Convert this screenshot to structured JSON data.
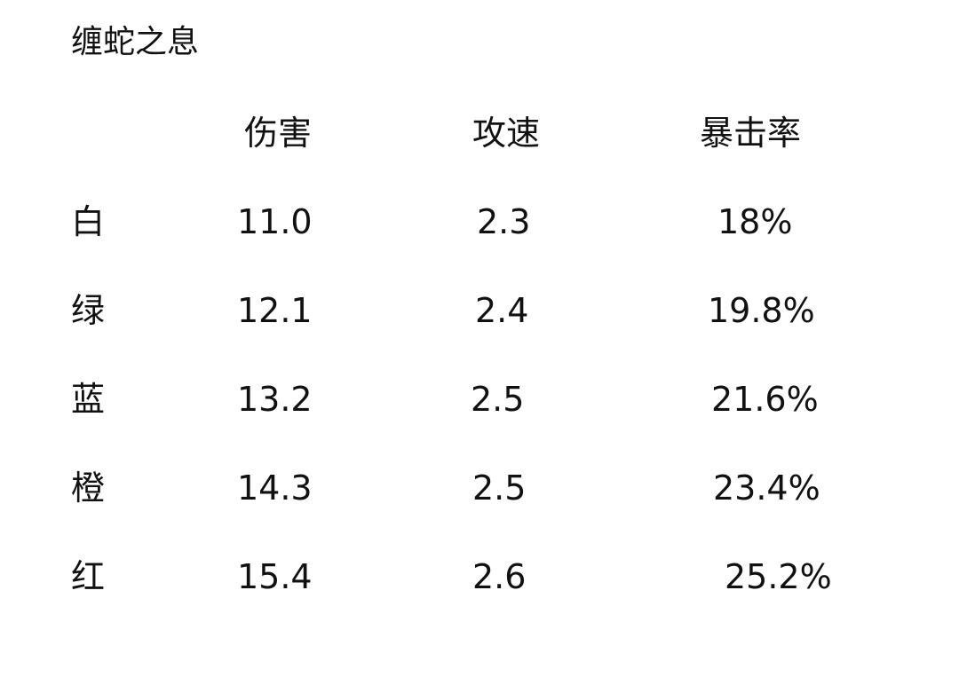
{
  "title": "缠蛇之息",
  "table": {
    "headers": [
      "伤害",
      "攻速",
      "暴击率"
    ],
    "rows": [
      {
        "label": "白",
        "values": [
          "11.0",
          "2.3",
          "18%"
        ]
      },
      {
        "label": "绿",
        "values": [
          "12.1",
          "2.4",
          "19.8%"
        ]
      },
      {
        "label": "蓝",
        "values": [
          "13.2",
          "2.5",
          "21.6%"
        ]
      },
      {
        "label": "橙",
        "values": [
          "14.3",
          "2.5",
          "23.4%"
        ]
      },
      {
        "label": "红",
        "values": [
          "15.4",
          "2.6",
          "25.2%"
        ]
      }
    ]
  }
}
